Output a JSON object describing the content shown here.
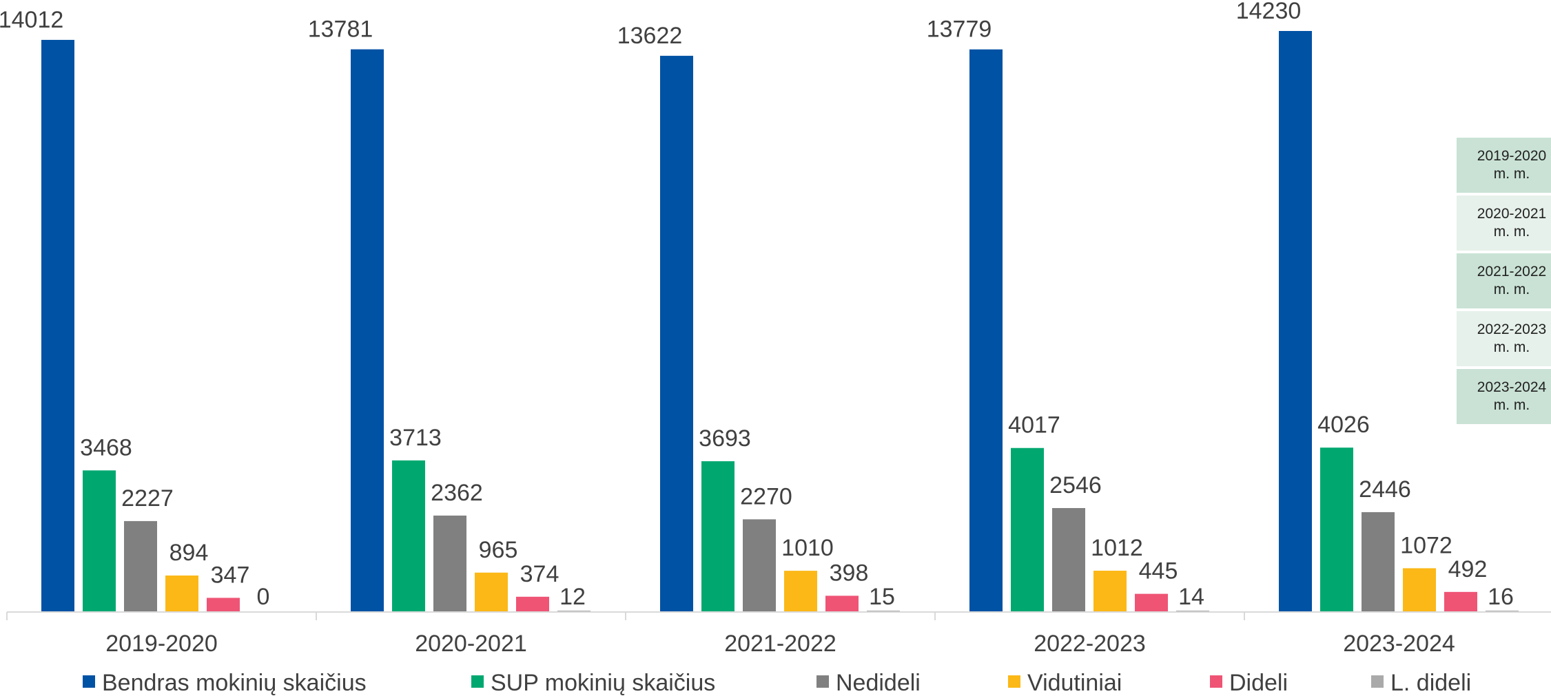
{
  "chart_data": {
    "type": "bar",
    "categories": [
      "2019-2020",
      "2020-2021",
      "2021-2022",
      "2022-2023",
      "2023-2024"
    ],
    "series": [
      {
        "name": "Bendras mokinių skaičius",
        "color": "#0052a5",
        "values": [
          14012,
          13781,
          13622,
          13779,
          14230
        ]
      },
      {
        "name": "SUP mokinių skaičius",
        "color": "#00a870",
        "values": [
          3468,
          3713,
          3693,
          4017,
          4026
        ]
      },
      {
        "name": "Nedideli",
        "color": "#808080",
        "values": [
          2227,
          2362,
          2270,
          2546,
          2446
        ]
      },
      {
        "name": "Vidutiniai",
        "color": "#fbb817",
        "values": [
          894,
          965,
          1010,
          1012,
          1072
        ]
      },
      {
        "name": "Dideli",
        "color": "#ef5475",
        "values": [
          347,
          374,
          398,
          445,
          492
        ]
      },
      {
        "name": "L. dideli",
        "color": "#aaaaaa",
        "values": [
          0,
          12,
          15,
          14,
          16
        ]
      }
    ],
    "ylim": [
      0,
      14230
    ],
    "grid": false,
    "legend": "bottom"
  },
  "side_table": {
    "rows": [
      {
        "line1": "2019-2020",
        "line2": "m. m."
      },
      {
        "line1": "2020-2021",
        "line2": "m. m."
      },
      {
        "line1": "2021-2022",
        "line2": "m. m."
      },
      {
        "line1": "2022-2023",
        "line2": "m. m."
      },
      {
        "line1": "2023-2024",
        "line2": "m. m."
      }
    ]
  }
}
